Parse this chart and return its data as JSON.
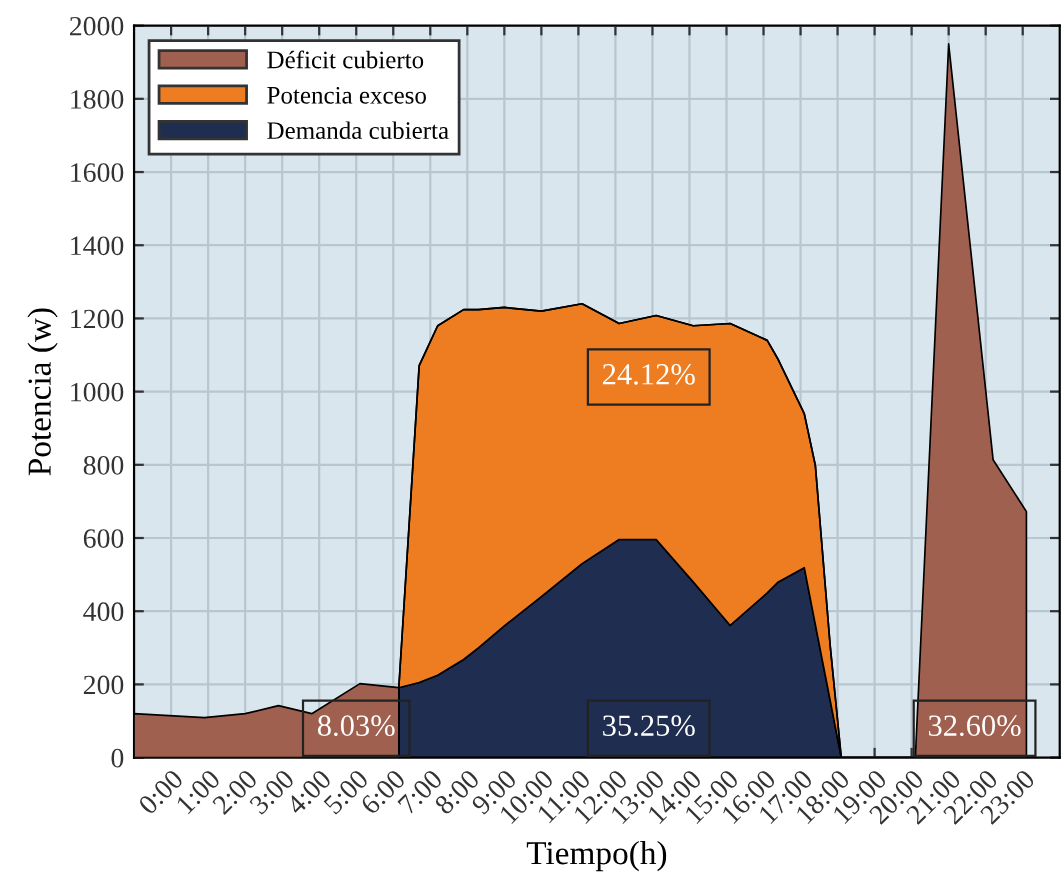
{
  "chart_data": {
    "type": "area",
    "stacked": true,
    "xlabel": "Tiempo(h)",
    "ylabel": "Potencia (w)",
    "x": [
      -1,
      0.9,
      2,
      2.9,
      3.8,
      5.1,
      6.15,
      6.15,
      6.7,
      7.2,
      7.9,
      8.3,
      9,
      10,
      11.1,
      12.1,
      13.1,
      14.1,
      15.1,
      16.1,
      16.4,
      17.1,
      17.4,
      17.8,
      18.1,
      20.1,
      21.0,
      22.2,
      23.1,
      23.1
    ],
    "series": [
      {
        "name": "Demanda cubierta",
        "color": "#1f2d50",
        "values": [
          0,
          0,
          0,
          0,
          0,
          0,
          0,
          191,
          205,
          225,
          268,
          300,
          360,
          440,
          530,
          596,
          596,
          480,
          361,
          450,
          480,
          519,
          363,
          156,
          0,
          0,
          0,
          0,
          0,
          0
        ]
      },
      {
        "name": "Potencia exceso",
        "color": "#ee7d22",
        "values": [
          0,
          0,
          0,
          0,
          0,
          0,
          0,
          0,
          866,
          955,
          956,
          924,
          870,
          780,
          710,
          590,
          612,
          700,
          825,
          690,
          607,
          421,
          435,
          150,
          0,
          0,
          0,
          0,
          0,
          0
        ]
      },
      {
        "name": "Déficit cubierto",
        "color": "#a0604f",
        "values": [
          120,
          109,
          120,
          142,
          120,
          202,
          191,
          0,
          0,
          0,
          0,
          0,
          0,
          0,
          0,
          0,
          0,
          0,
          0,
          0,
          0,
          0,
          0,
          0,
          0,
          0,
          1950,
          814,
          672,
          0
        ]
      }
    ],
    "xlim": [
      -1,
      24
    ],
    "xticks": [
      {
        "value": 0,
        "label": "0:00"
      },
      {
        "value": 1,
        "label": "1:00"
      },
      {
        "value": 2,
        "label": "2:00"
      },
      {
        "value": 3,
        "label": "3:00"
      },
      {
        "value": 4,
        "label": "4:00"
      },
      {
        "value": 5,
        "label": "5:00"
      },
      {
        "value": 6,
        "label": "6:00"
      },
      {
        "value": 7,
        "label": "7:00"
      },
      {
        "value": 8,
        "label": "8:00"
      },
      {
        "value": 9,
        "label": "9:00"
      },
      {
        "value": 10,
        "label": "10:00"
      },
      {
        "value": 11,
        "label": "11:00"
      },
      {
        "value": 12,
        "label": "12:00"
      },
      {
        "value": 13,
        "label": "13:00"
      },
      {
        "value": 14,
        "label": "14:00"
      },
      {
        "value": 15,
        "label": "15:00"
      },
      {
        "value": 16,
        "label": "16:00"
      },
      {
        "value": 17,
        "label": "17:00"
      },
      {
        "value": 18,
        "label": "18:00"
      },
      {
        "value": 19,
        "label": "19:00"
      },
      {
        "value": 20,
        "label": "20:00"
      },
      {
        "value": 21,
        "label": "21:00"
      },
      {
        "value": 22,
        "label": "22:00"
      },
      {
        "value": 23,
        "label": "23:00"
      }
    ],
    "ylim": [
      0,
      2000
    ],
    "yticks": [
      0,
      200,
      400,
      600,
      800,
      1000,
      1200,
      1400,
      1600,
      1800,
      2000
    ],
    "grid": true,
    "legend": "top left",
    "annotations": [
      "8.03%",
      "24.12%",
      "35.25%",
      "32.60%"
    ]
  }
}
